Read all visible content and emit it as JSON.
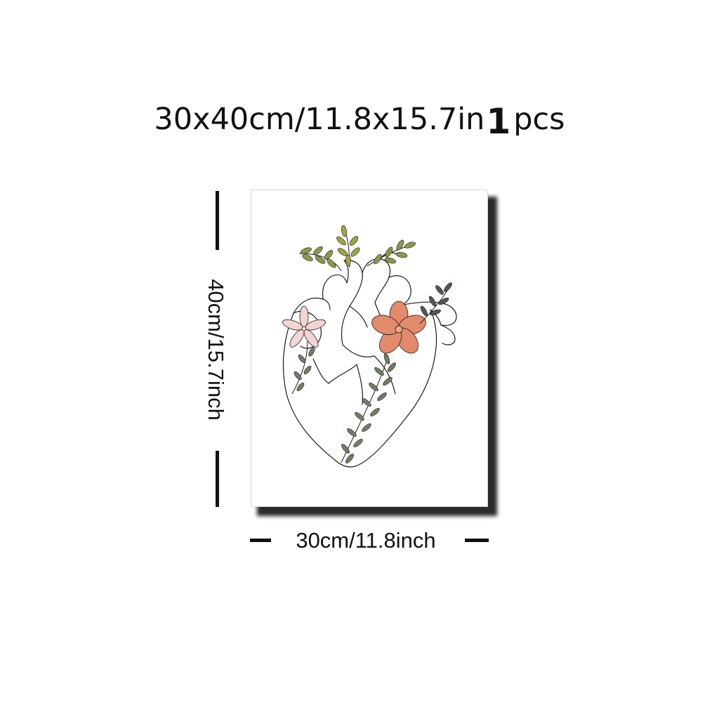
{
  "title": {
    "dimensions": "30x40cm/11.8x15.7in",
    "quantity_number": "1",
    "quantity_unit": "pcs"
  },
  "dimensions": {
    "height_label": "40cm/15.7inch",
    "width_label": "30cm/11.8inch"
  },
  "artwork": {
    "subject": "heart-with-flowers-line-art",
    "colors": {
      "line": "#1a1a1a",
      "pink_flower": "#f2d4d2",
      "coral_flower": "#e48a6c",
      "leaf_olive": "#8a9a4c",
      "leaf_dark": "#4f5b4e",
      "leaf_sage": "#6f8064"
    }
  }
}
